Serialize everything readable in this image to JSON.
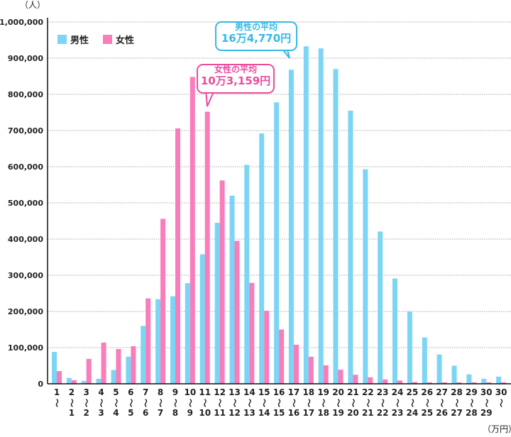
{
  "chart_data": {
    "type": "bar",
    "title": "",
    "ylabel": "（人）",
    "xlabel": "（万円）",
    "ylim": [
      0,
      1000000
    ],
    "yticks": [
      0,
      100000,
      200000,
      300000,
      400000,
      500000,
      600000,
      700000,
      800000,
      900000,
      1000000
    ],
    "ytick_labels": [
      "0",
      "100,000",
      "200,000",
      "300,000",
      "400,000",
      "500,000",
      "600,000",
      "700,000",
      "800,000",
      "900,000",
      "1,000,000"
    ],
    "grid": true,
    "legend_position": "top-left",
    "categories": [
      {
        "top": "1",
        "bottom": ""
      },
      {
        "top": "2",
        "bottom": "1"
      },
      {
        "top": "3",
        "bottom": "2"
      },
      {
        "top": "4",
        "bottom": "3"
      },
      {
        "top": "5",
        "bottom": "4"
      },
      {
        "top": "6",
        "bottom": "5"
      },
      {
        "top": "7",
        "bottom": "6"
      },
      {
        "top": "8",
        "bottom": "7"
      },
      {
        "top": "9",
        "bottom": "8"
      },
      {
        "top": "10",
        "bottom": "9"
      },
      {
        "top": "11",
        "bottom": "10"
      },
      {
        "top": "12",
        "bottom": "11"
      },
      {
        "top": "13",
        "bottom": "12"
      },
      {
        "top": "14",
        "bottom": "13"
      },
      {
        "top": "15",
        "bottom": "14"
      },
      {
        "top": "16",
        "bottom": "15"
      },
      {
        "top": "17",
        "bottom": "16"
      },
      {
        "top": "18",
        "bottom": "17"
      },
      {
        "top": "19",
        "bottom": "18"
      },
      {
        "top": "20",
        "bottom": "19"
      },
      {
        "top": "21",
        "bottom": "20"
      },
      {
        "top": "22",
        "bottom": "21"
      },
      {
        "top": "23",
        "bottom": "22"
      },
      {
        "top": "24",
        "bottom": "23"
      },
      {
        "top": "25",
        "bottom": "24"
      },
      {
        "top": "26",
        "bottom": "25"
      },
      {
        "top": "27",
        "bottom": "26"
      },
      {
        "top": "28",
        "bottom": "27"
      },
      {
        "top": "29",
        "bottom": "28"
      },
      {
        "top": "30",
        "bottom": "29"
      },
      {
        "top": "30",
        "bottom": ""
      }
    ],
    "range_symbol": "〜",
    "series": [
      {
        "name": "男性",
        "color": "#7dd5f5",
        "values": [
          88000,
          16000,
          8000,
          14000,
          38000,
          75000,
          160000,
          234000,
          242000,
          278000,
          358000,
          445000,
          520000,
          605000,
          692000,
          778000,
          868000,
          933000,
          927000,
          870000,
          755000,
          593000,
          421000,
          291000,
          199000,
          128000,
          81000,
          50000,
          26000,
          14000,
          20000
        ]
      },
      {
        "name": "女性",
        "color": "#f97cbb",
        "values": [
          35000,
          10000,
          69000,
          114000,
          96000,
          104000,
          236000,
          456000,
          706000,
          848000,
          752000,
          562000,
          395000,
          279000,
          202000,
          150000,
          108000,
          75000,
          51000,
          39000,
          25000,
          18000,
          12000,
          9000,
          5000,
          4000,
          4000,
          4000,
          4000,
          4000,
          4000
        ]
      }
    ],
    "annotations": [
      {
        "id": "male-average",
        "line1": "男性の平均",
        "line2": "16万4,770円",
        "color": "#36b8e6",
        "points_to_category": "17"
      },
      {
        "id": "female-average",
        "line1": "女性の平均",
        "line2": "10万3,159円",
        "color": "#ec4b9c",
        "points_to_category": "11"
      }
    ]
  }
}
